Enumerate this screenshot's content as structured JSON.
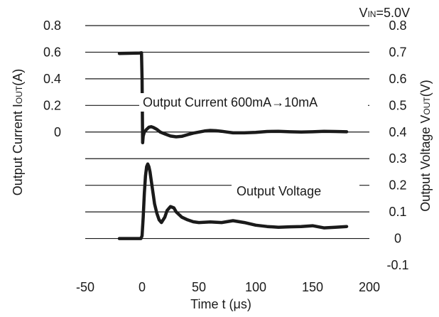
{
  "chart_data": {
    "type": "line",
    "title": "",
    "condition": {
      "prefix": "V",
      "subscript": "IN",
      "suffix": "=5.0V"
    },
    "xlabel": {
      "main": "Time t (",
      "mu": "μ",
      "unit": "s)"
    },
    "xlim": [
      -50,
      200
    ],
    "xticks": [
      "-50",
      "0",
      "50",
      "100",
      "150",
      "200"
    ],
    "y_left": {
      "label": {
        "main": "Output Current I",
        "subscript": "OUT",
        "suffix": "(A)"
      },
      "ticks": [
        "0.8",
        "0.6",
        "0.4",
        "0.2",
        "0"
      ],
      "tick_values": [
        0.8,
        0.6,
        0.4,
        0.2,
        0.0
      ]
    },
    "y_right": {
      "label": {
        "main": "Output Voltage V",
        "subscript": "OUT",
        "suffix": "(V)"
      },
      "ticks": [
        "0.8",
        "0.7",
        "0.6",
        "0.5",
        "0.4",
        "0.3",
        "0.2",
        "0.1",
        "0",
        "-0.1"
      ],
      "lim": [
        -0.1,
        0.8
      ]
    },
    "grid": true,
    "annotations": {
      "current": {
        "main": "Output Current 600mA",
        "arrow": "→",
        "tail": "10mA"
      },
      "voltage": "Output Voltage"
    },
    "series": [
      {
        "axis": "right",
        "x": [
          -20,
          -2,
          -0.5,
          0,
          0.5,
          1,
          2,
          4,
          6,
          8,
          10,
          13,
          16,
          20,
          25,
          30,
          35,
          40,
          45,
          50,
          55,
          60,
          65,
          70,
          75,
          80,
          90,
          100,
          110,
          120,
          130,
          140,
          150,
          160,
          170,
          180
        ],
        "y": [
          0.695,
          0.697,
          0.698,
          0.6,
          0.36,
          0.385,
          0.4,
          0.41,
          0.418,
          0.42,
          0.417,
          0.41,
          0.4,
          0.393,
          0.385,
          0.382,
          0.384,
          0.39,
          0.396,
          0.4,
          0.404,
          0.406,
          0.405,
          0.403,
          0.4,
          0.397,
          0.397,
          0.399,
          0.402,
          0.403,
          0.401,
          0.4,
          0.401,
          0.403,
          0.402,
          0.401
        ]
      },
      {
        "axis": "right",
        "x": [
          -20,
          -15,
          -10,
          -5,
          -1,
          0,
          1,
          2,
          3,
          4,
          5,
          6,
          7,
          8,
          9,
          10,
          11,
          13,
          15,
          17,
          20,
          22,
          25,
          28,
          30,
          35,
          40,
          45,
          50,
          60,
          70,
          80,
          90,
          100,
          110,
          120,
          130,
          140,
          150,
          160,
          170,
          180
        ],
        "y": [
          0.0,
          0.0,
          0.0,
          0.0,
          0.0,
          0.01,
          0.08,
          0.17,
          0.235,
          0.27,
          0.28,
          0.27,
          0.25,
          0.22,
          0.19,
          0.16,
          0.13,
          0.095,
          0.07,
          0.06,
          0.08,
          0.105,
          0.12,
          0.115,
          0.1,
          0.08,
          0.07,
          0.063,
          0.06,
          0.062,
          0.06,
          0.067,
          0.06,
          0.05,
          0.045,
          0.042,
          0.044,
          0.045,
          0.048,
          0.04,
          0.042,
          0.045
        ]
      }
    ]
  }
}
